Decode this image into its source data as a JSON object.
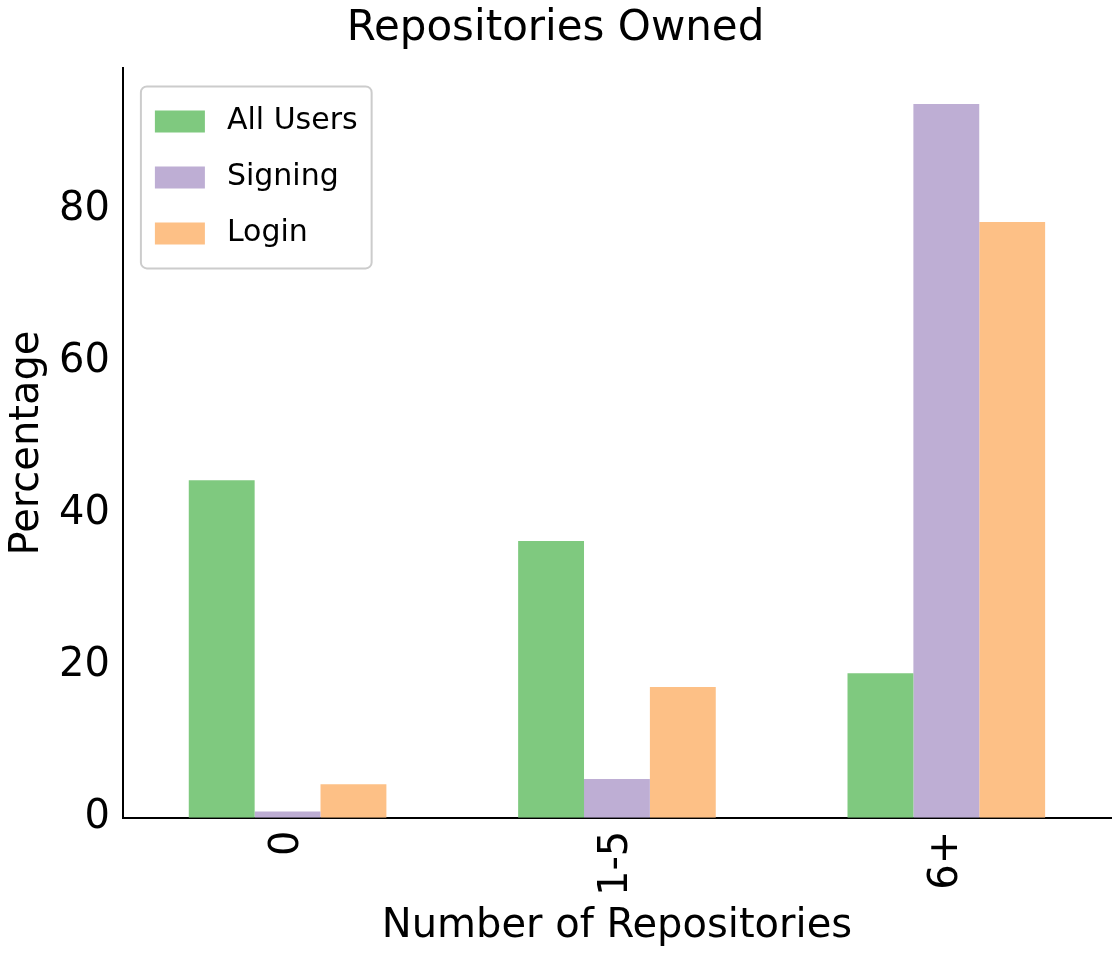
{
  "chart_data": {
    "type": "bar",
    "title": "Repositories Owned",
    "xlabel": "Number of Repositories",
    "ylabel": "Percentage",
    "categories": [
      "0",
      "1-5",
      "6+"
    ],
    "series": [
      {
        "name": "All Users",
        "color": "#7fc97f",
        "values": [
          44.4,
          36.4,
          19.0
        ]
      },
      {
        "name": "Signing",
        "color": "#beaed4",
        "values": [
          0.8,
          5.1,
          93.9
        ]
      },
      {
        "name": "Login",
        "color": "#fdc086",
        "values": [
          4.4,
          17.2,
          78.4
        ]
      }
    ],
    "ylim": [
      0,
      98.6
    ],
    "yticks": [
      0,
      20,
      40,
      60,
      80
    ],
    "grid": false,
    "legend": "top left"
  }
}
